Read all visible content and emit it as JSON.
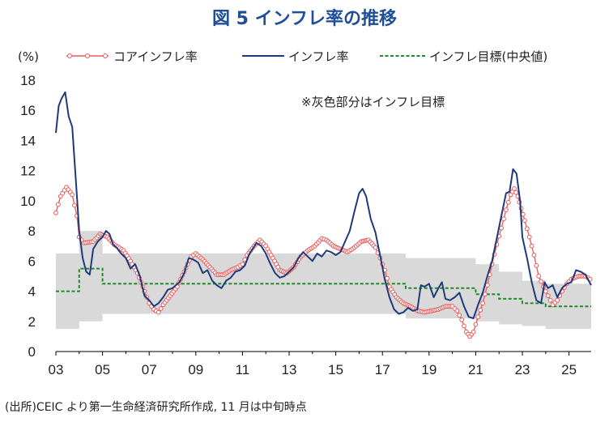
{
  "chart_data": {
    "type": "line",
    "title": "図 5 インフレ率の推移",
    "ylabel": "(%)",
    "note": "※灰色部分はインフレ目標",
    "source": "(出所)CEIC より第一生命経済研究所作成, 11 月は中旬時点",
    "ylim": [
      0,
      18
    ],
    "yticks": [
      "0",
      "2",
      "4",
      "6",
      "8",
      "10",
      "12",
      "14",
      "16",
      "18"
    ],
    "xlim": [
      2003.0,
      2025.95
    ],
    "xticks": [
      "03",
      "05",
      "07",
      "09",
      "11",
      "13",
      "15",
      "17",
      "19",
      "21",
      "23",
      "25"
    ],
    "colors": {
      "core": "#e85a5a",
      "headline": "#1f3a7a",
      "target": "#1f8a2a",
      "band": "#d9d9d9"
    },
    "series": [
      {
        "key": "core",
        "name": "コアインフレ率",
        "points": [
          [
            2003.0,
            9.2
          ],
          [
            2003.2,
            10.3
          ],
          [
            2003.45,
            10.9
          ],
          [
            2003.7,
            10.4
          ],
          [
            2003.9,
            9.0
          ],
          [
            2004.0,
            7.6
          ],
          [
            2004.2,
            7.2
          ],
          [
            2004.6,
            7.3
          ],
          [
            2004.9,
            7.8
          ],
          [
            2005.2,
            7.6
          ],
          [
            2005.5,
            7.1
          ],
          [
            2005.9,
            6.7
          ],
          [
            2006.2,
            6.0
          ],
          [
            2006.5,
            5.2
          ],
          [
            2006.8,
            4.0
          ],
          [
            2007.0,
            3.2
          ],
          [
            2007.2,
            2.8
          ],
          [
            2007.4,
            2.6
          ],
          [
            2007.6,
            3.1
          ],
          [
            2007.9,
            3.7
          ],
          [
            2008.2,
            4.3
          ],
          [
            2008.5,
            5.3
          ],
          [
            2008.8,
            6.3
          ],
          [
            2009.0,
            6.5
          ],
          [
            2009.3,
            6.1
          ],
          [
            2009.6,
            5.6
          ],
          [
            2009.9,
            5.1
          ],
          [
            2010.2,
            5.1
          ],
          [
            2010.5,
            5.4
          ],
          [
            2010.8,
            5.6
          ],
          [
            2011.0,
            5.8
          ],
          [
            2011.2,
            6.4
          ],
          [
            2011.5,
            7.0
          ],
          [
            2011.75,
            7.4
          ],
          [
            2012.0,
            7.0
          ],
          [
            2012.3,
            6.2
          ],
          [
            2012.6,
            5.4
          ],
          [
            2012.9,
            5.2
          ],
          [
            2013.2,
            5.6
          ],
          [
            2013.5,
            6.3
          ],
          [
            2013.8,
            6.7
          ],
          [
            2014.1,
            7.0
          ],
          [
            2014.4,
            7.5
          ],
          [
            2014.6,
            7.4
          ],
          [
            2014.9,
            7.0
          ],
          [
            2015.2,
            6.8
          ],
          [
            2015.5,
            6.6
          ],
          [
            2015.8,
            6.9
          ],
          [
            2016.1,
            7.3
          ],
          [
            2016.4,
            7.4
          ],
          [
            2016.7,
            6.9
          ],
          [
            2016.9,
            6.2
          ],
          [
            2017.1,
            5.4
          ],
          [
            2017.3,
            4.3
          ],
          [
            2017.6,
            3.6
          ],
          [
            2017.9,
            3.2
          ],
          [
            2018.2,
            3.0
          ],
          [
            2018.5,
            2.7
          ],
          [
            2018.8,
            2.6
          ],
          [
            2019.1,
            2.7
          ],
          [
            2019.4,
            2.8
          ],
          [
            2019.7,
            3.0
          ],
          [
            2020.0,
            3.0
          ],
          [
            2020.2,
            2.7
          ],
          [
            2020.4,
            2.1
          ],
          [
            2020.6,
            1.3
          ],
          [
            2020.75,
            1.0
          ],
          [
            2020.9,
            1.3
          ],
          [
            2021.1,
            2.3
          ],
          [
            2021.3,
            3.2
          ],
          [
            2021.5,
            4.4
          ],
          [
            2021.7,
            5.8
          ],
          [
            2021.9,
            7.1
          ],
          [
            2022.1,
            8.2
          ],
          [
            2022.3,
            9.4
          ],
          [
            2022.5,
            10.4
          ],
          [
            2022.65,
            10.8
          ],
          [
            2022.8,
            10.3
          ],
          [
            2022.95,
            9.5
          ],
          [
            2023.1,
            8.7
          ],
          [
            2023.3,
            7.6
          ],
          [
            2023.5,
            6.4
          ],
          [
            2023.7,
            5.0
          ],
          [
            2023.9,
            4.3
          ],
          [
            2024.1,
            3.7
          ],
          [
            2024.3,
            3.1
          ],
          [
            2024.5,
            3.4
          ],
          [
            2024.7,
            4.0
          ],
          [
            2024.9,
            4.5
          ],
          [
            2025.1,
            4.8
          ],
          [
            2025.4,
            5.0
          ],
          [
            2025.7,
            5.0
          ],
          [
            2025.9,
            4.8
          ]
        ]
      },
      {
        "key": "headline",
        "name": "インフレ率",
        "points": [
          [
            2003.0,
            14.5
          ],
          [
            2003.12,
            16.3
          ],
          [
            2003.25,
            16.8
          ],
          [
            2003.4,
            17.2
          ],
          [
            2003.55,
            15.6
          ],
          [
            2003.7,
            14.9
          ],
          [
            2003.85,
            11.5
          ],
          [
            2004.0,
            8.0
          ],
          [
            2004.15,
            6.2
          ],
          [
            2004.3,
            5.3
          ],
          [
            2004.45,
            5.1
          ],
          [
            2004.6,
            6.8
          ],
          [
            2004.8,
            7.3
          ],
          [
            2005.0,
            7.6
          ],
          [
            2005.15,
            8.0
          ],
          [
            2005.3,
            7.8
          ],
          [
            2005.45,
            7.1
          ],
          [
            2005.6,
            6.9
          ],
          [
            2005.8,
            6.5
          ],
          [
            2006.0,
            6.2
          ],
          [
            2006.2,
            5.5
          ],
          [
            2006.4,
            5.8
          ],
          [
            2006.6,
            5.0
          ],
          [
            2006.8,
            3.7
          ],
          [
            2007.0,
            3.4
          ],
          [
            2007.2,
            3.0
          ],
          [
            2007.4,
            3.2
          ],
          [
            2007.6,
            3.6
          ],
          [
            2007.8,
            4.1
          ],
          [
            2008.0,
            4.2
          ],
          [
            2008.3,
            4.6
          ],
          [
            2008.5,
            5.2
          ],
          [
            2008.7,
            6.2
          ],
          [
            2008.9,
            6.1
          ],
          [
            2009.1,
            5.9
          ],
          [
            2009.3,
            5.2
          ],
          [
            2009.5,
            5.4
          ],
          [
            2009.7,
            4.7
          ],
          [
            2009.9,
            4.4
          ],
          [
            2010.1,
            4.2
          ],
          [
            2010.3,
            4.7
          ],
          [
            2010.5,
            4.9
          ],
          [
            2010.7,
            5.3
          ],
          [
            2010.9,
            5.4
          ],
          [
            2011.1,
            5.7
          ],
          [
            2011.3,
            6.5
          ],
          [
            2011.6,
            7.2
          ],
          [
            2011.8,
            7.0
          ],
          [
            2012.0,
            6.5
          ],
          [
            2012.2,
            5.8
          ],
          [
            2012.4,
            5.2
          ],
          [
            2012.6,
            4.9
          ],
          [
            2012.8,
            5.0
          ],
          [
            2013.0,
            5.3
          ],
          [
            2013.2,
            5.6
          ],
          [
            2013.4,
            6.2
          ],
          [
            2013.6,
            6.6
          ],
          [
            2013.8,
            6.3
          ],
          [
            2014.0,
            6.0
          ],
          [
            2014.2,
            6.5
          ],
          [
            2014.4,
            6.3
          ],
          [
            2014.6,
            6.7
          ],
          [
            2014.8,
            6.6
          ],
          [
            2015.0,
            6.4
          ],
          [
            2015.2,
            6.6
          ],
          [
            2015.4,
            7.3
          ],
          [
            2015.6,
            8.0
          ],
          [
            2015.8,
            9.3
          ],
          [
            2016.0,
            10.5
          ],
          [
            2016.15,
            10.8
          ],
          [
            2016.3,
            10.3
          ],
          [
            2016.5,
            8.8
          ],
          [
            2016.7,
            7.9
          ],
          [
            2016.9,
            6.4
          ],
          [
            2017.1,
            4.8
          ],
          [
            2017.3,
            3.6
          ],
          [
            2017.5,
            2.8
          ],
          [
            2017.7,
            2.5
          ],
          [
            2017.9,
            2.6
          ],
          [
            2018.1,
            2.9
          ],
          [
            2018.3,
            2.7
          ],
          [
            2018.5,
            2.8
          ],
          [
            2018.65,
            4.4
          ],
          [
            2018.8,
            4.3
          ],
          [
            2019.0,
            4.5
          ],
          [
            2019.2,
            3.6
          ],
          [
            2019.4,
            4.2
          ],
          [
            2019.55,
            4.6
          ],
          [
            2019.7,
            3.5
          ],
          [
            2019.9,
            3.4
          ],
          [
            2020.1,
            3.6
          ],
          [
            2020.3,
            3.9
          ],
          [
            2020.5,
            3.0
          ],
          [
            2020.7,
            2.3
          ],
          [
            2020.9,
            2.2
          ],
          [
            2021.1,
            3.1
          ],
          [
            2021.3,
            3.9
          ],
          [
            2021.5,
            5.0
          ],
          [
            2021.7,
            6.0
          ],
          [
            2021.9,
            7.5
          ],
          [
            2022.1,
            9.0
          ],
          [
            2022.3,
            10.5
          ],
          [
            2022.45,
            10.6
          ],
          [
            2022.6,
            12.1
          ],
          [
            2022.75,
            11.8
          ],
          [
            2022.9,
            10.0
          ],
          [
            2023.0,
            7.6
          ],
          [
            2023.2,
            6.2
          ],
          [
            2023.4,
            4.6
          ],
          [
            2023.6,
            3.4
          ],
          [
            2023.8,
            3.2
          ],
          [
            2023.95,
            4.6
          ],
          [
            2024.1,
            4.2
          ],
          [
            2024.3,
            4.4
          ],
          [
            2024.5,
            3.6
          ],
          [
            2024.7,
            4.2
          ],
          [
            2024.9,
            4.5
          ],
          [
            2025.1,
            4.6
          ],
          [
            2025.3,
            5.4
          ],
          [
            2025.5,
            5.3
          ],
          [
            2025.7,
            5.1
          ],
          [
            2025.95,
            4.4
          ]
        ]
      },
      {
        "key": "target",
        "name": "インフレ目標(中央値)",
        "points": [
          [
            2003.0,
            4.0
          ],
          [
            2004.0,
            4.0
          ],
          [
            2004.0,
            5.5
          ],
          [
            2005.0,
            5.5
          ],
          [
            2005.0,
            4.5
          ],
          [
            2017.4,
            4.5
          ],
          [
            2018.0,
            4.5
          ],
          [
            2018.0,
            4.2
          ],
          [
            2021.0,
            4.2
          ],
          [
            2021.0,
            3.8
          ],
          [
            2022.0,
            3.8
          ],
          [
            2022.0,
            3.5
          ],
          [
            2023.0,
            3.5
          ],
          [
            2023.0,
            3.2
          ],
          [
            2024.0,
            3.2
          ],
          [
            2024.0,
            3.0
          ],
          [
            2025.95,
            3.0
          ]
        ]
      }
    ],
    "target_band": [
      [
        2003.0,
        1.5,
        6.5
      ],
      [
        2004.0,
        1.5,
        6.5
      ],
      [
        2004.0,
        2.0,
        8.0
      ],
      [
        2005.0,
        2.0,
        8.0
      ],
      [
        2005.0,
        2.5,
        6.5
      ],
      [
        2017.4,
        2.5,
        6.5
      ],
      [
        2018.0,
        2.5,
        6.5
      ],
      [
        2018.0,
        2.2,
        6.2
      ],
      [
        2021.0,
        2.2,
        6.2
      ],
      [
        2021.0,
        2.0,
        5.8
      ],
      [
        2022.0,
        2.0,
        5.8
      ],
      [
        2022.0,
        1.8,
        5.3
      ],
      [
        2023.0,
        1.8,
        5.3
      ],
      [
        2023.0,
        1.7,
        4.7
      ],
      [
        2024.0,
        1.7,
        4.7
      ],
      [
        2024.0,
        1.5,
        4.5
      ],
      [
        2025.95,
        1.5,
        4.5
      ]
    ]
  }
}
